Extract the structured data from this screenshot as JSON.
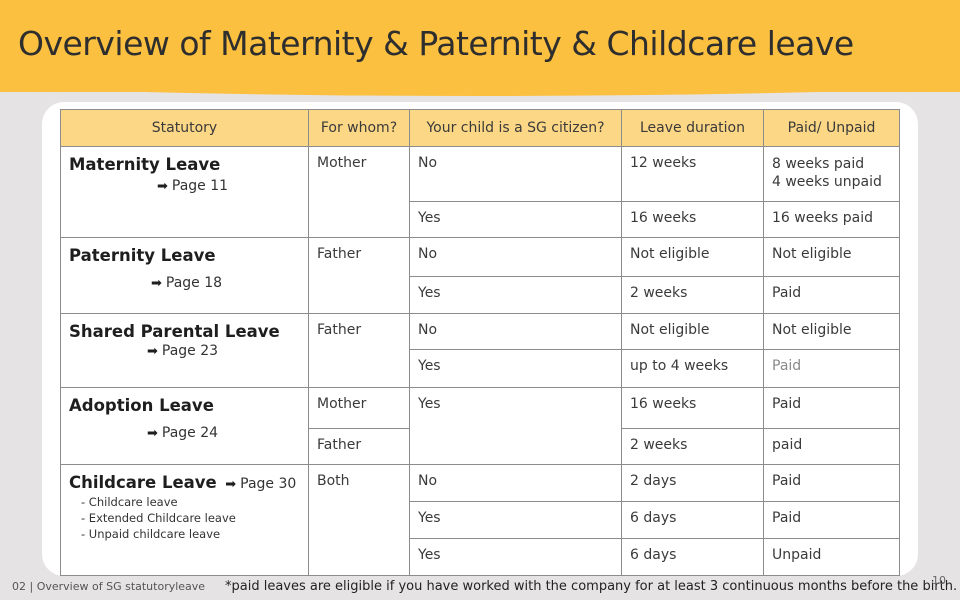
{
  "slide": {
    "title": "Overview of Maternity & Paternity & Childcare leave",
    "footer_left": "02 | Overview of SG statutoryleave",
    "footnote": "*paid leaves are eligible if you have worked with the company for at least 3 continuous months before the birth.",
    "page_number": "10"
  },
  "colors": {
    "banner": "#fbc03f",
    "header_fill": "#fcd786",
    "background": "#e6e3e4"
  },
  "table": {
    "headers": [
      "Statutory",
      "For whom?",
      "Your child is a SG citizen?",
      "Leave duration",
      "Paid/ Unpaid"
    ],
    "arrow_icon": "➡",
    "groups": [
      {
        "name": "Maternity Leave",
        "page": "Page 11",
        "rows": [
          {
            "whom": "Mother",
            "citizen": "No",
            "duration": "12 weeks",
            "paid": "8 weeks paid",
            "paid_line2": "4 weeks unpaid"
          },
          {
            "citizen": "Yes",
            "duration": "16 weeks",
            "paid": "16 weeks paid"
          }
        ]
      },
      {
        "name": "Paternity Leave",
        "page": "Page 18",
        "rows": [
          {
            "whom": "Father",
            "citizen": "No",
            "duration": "Not eligible",
            "paid": "Not eligible"
          },
          {
            "citizen": "Yes",
            "duration": "2 weeks",
            "paid": "Paid"
          }
        ]
      },
      {
        "name": "Shared Parental Leave",
        "page": "Page 23",
        "rows": [
          {
            "whom": "Father",
            "citizen": "No",
            "duration": "Not eligible",
            "paid": "Not eligible"
          },
          {
            "citizen": "Yes",
            "duration": "up to 4 weeks",
            "paid": "Paid"
          }
        ]
      },
      {
        "name": "Adoption Leave",
        "page": "Page 24",
        "rows": [
          {
            "whom": "Mother",
            "citizen": "Yes",
            "duration": "16 weeks",
            "paid": "Paid"
          },
          {
            "whom": "Father",
            "duration": "2 weeks",
            "paid": "paid"
          }
        ]
      },
      {
        "name": "Childcare Leave",
        "page": "Page 30",
        "sub_items": [
          "- Childcare leave",
          "- Extended Childcare leave",
          "- Unpaid childcare leave"
        ],
        "rows": [
          {
            "whom": "Both",
            "citizen": "No",
            "duration": "2 days",
            "paid": "Paid"
          },
          {
            "citizen": "Yes",
            "duration": "6 days",
            "paid": "Paid"
          },
          {
            "citizen": "Yes",
            "duration": "6 days",
            "paid": "Unpaid"
          }
        ]
      }
    ]
  }
}
